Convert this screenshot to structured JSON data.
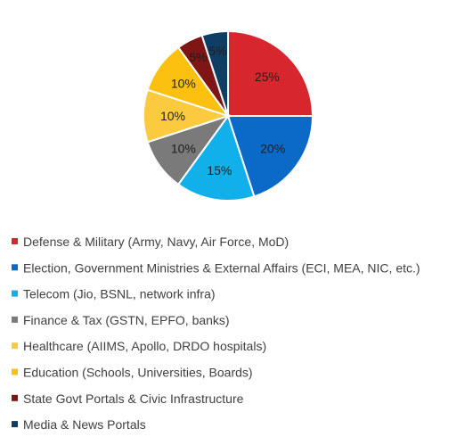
{
  "chart_data": {
    "type": "pie",
    "title": "",
    "legend_position": "bottom",
    "slices": [
      {
        "label": "Defense & Military (Army, Navy, Air Force, MoD)",
        "value": 25,
        "display": "25%",
        "color": "#d7262e"
      },
      {
        "label": "Election, Government Ministries & External Affairs (ECI, MEA, NIC, etc.)",
        "value": 20,
        "display": "20%",
        "color": "#0b69c7"
      },
      {
        "label": "Telecom (Jio, BSNL, network infra)",
        "value": 15,
        "display": "15%",
        "color": "#11b0ea"
      },
      {
        "label": "Finance & Tax (GSTN, EPFO, banks)",
        "value": 10,
        "display": "10%",
        "color": "#7a7a7a"
      },
      {
        "label": "Healthcare (AIIMS, Apollo, DRDO hospitals)",
        "value": 10,
        "display": "10%",
        "color": "#fcca3e"
      },
      {
        "label": "Education (Schools, Universities, Boards)",
        "value": 10,
        "display": "10%",
        "color": "#fbc010"
      },
      {
        "label": "State Govt Portals & Civic Infrastructure",
        "value": 5,
        "display": "5%",
        "color": "#7f1515"
      },
      {
        "label": "Media & News Portals",
        "value": 5,
        "display": "5%",
        "color": "#0e3e66"
      }
    ]
  }
}
